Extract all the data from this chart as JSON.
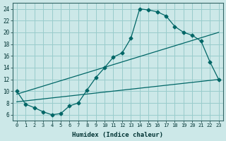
{
  "title": "",
  "xlabel": "Humidex (Indice chaleur)",
  "bg_color": "#cce8e8",
  "grid_color": "#99cccc",
  "line_color": "#006666",
  "xlim": [
    -0.5,
    23.5
  ],
  "ylim": [
    5.0,
    25.0
  ],
  "xticks": [
    0,
    1,
    2,
    3,
    4,
    5,
    6,
    7,
    8,
    9,
    10,
    11,
    12,
    13,
    14,
    15,
    16,
    17,
    18,
    19,
    20,
    21,
    22,
    23
  ],
  "yticks": [
    6,
    8,
    10,
    12,
    14,
    16,
    18,
    20,
    22,
    24
  ],
  "curve_x": [
    0,
    1,
    2,
    3,
    4,
    5,
    6,
    7,
    8,
    9,
    10,
    11,
    12,
    13,
    14,
    15,
    16,
    17,
    18,
    19,
    20,
    21,
    22,
    23
  ],
  "curve_y": [
    10.0,
    7.8,
    7.2,
    6.5,
    6.0,
    6.2,
    7.5,
    8.0,
    10.2,
    12.3,
    14.0,
    15.8,
    16.5,
    19.0,
    24.0,
    23.8,
    23.5,
    22.8,
    21.0,
    20.0,
    19.5,
    18.5,
    15.0,
    12.0
  ],
  "line1_x": [
    0,
    23
  ],
  "line1_y": [
    8.2,
    12.0
  ],
  "line2_x": [
    0,
    23
  ],
  "line2_y": [
    9.5,
    20.0
  ],
  "marker": "D",
  "marker_size": 2.5
}
